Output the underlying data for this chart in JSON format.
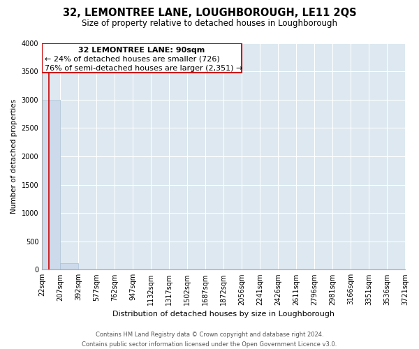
{
  "title": "32, LEMONTREE LANE, LOUGHBOROUGH, LE11 2QS",
  "subtitle": "Size of property relative to detached houses in Loughborough",
  "xlabel": "Distribution of detached houses by size in Loughborough",
  "ylabel": "Number of detached properties",
  "bar_edges": [
    22,
    207,
    392,
    577,
    762,
    947,
    1132,
    1317,
    1502,
    1687,
    1872,
    2056,
    2241,
    2426,
    2611,
    2796,
    2981,
    3166,
    3351,
    3536,
    3721
  ],
  "bar_heights": [
    3000,
    110,
    5,
    2,
    1,
    1,
    1,
    1,
    1,
    1,
    1,
    1,
    1,
    1,
    1,
    1,
    1,
    1,
    1,
    1
  ],
  "bar_color": "#ccdaeb",
  "bar_edgecolor": "#a8bfd4",
  "property_sqm": 90,
  "property_line_color": "#cc0000",
  "annotation_box_color": "#cc0000",
  "annotation_text_line1": "32 LEMONTREE LANE: 90sqm",
  "annotation_text_line2": "← 24% of detached houses are smaller (726)",
  "annotation_text_line3": "76% of semi-detached houses are larger (2,351) →",
  "annotation_fontsize": 8,
  "ylim": [
    0,
    4000
  ],
  "yticks": [
    0,
    500,
    1000,
    1500,
    2000,
    2500,
    3000,
    3500,
    4000
  ],
  "fig_bg_color": "#ffffff",
  "plot_bg_color": "#dde8f0",
  "title_fontsize": 10.5,
  "subtitle_fontsize": 8.5,
  "xlabel_fontsize": 8,
  "ylabel_fontsize": 7.5,
  "tick_fontsize": 7,
  "footer_fontsize": 6,
  "footer_line1": "Contains HM Land Registry data © Crown copyright and database right 2024.",
  "footer_line2": "Contains public sector information licensed under the Open Government Licence v3.0."
}
